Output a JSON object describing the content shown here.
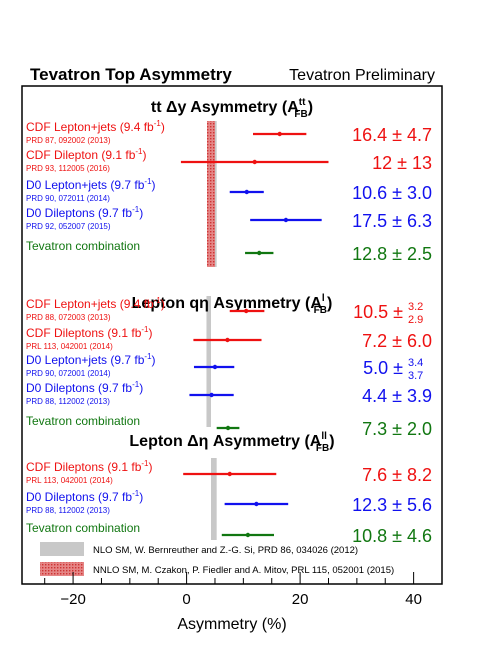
{
  "header": {
    "title": "Tevatron Top Asymmetry",
    "subtitle": "Tevatron Preliminary"
  },
  "chart_data": {
    "type": "scatter",
    "xlabel": "Asymmetry (%)",
    "xlim": [
      -29,
      45
    ],
    "xticks": [
      -20,
      0,
      20,
      40
    ],
    "xtick_labels": [
      "−20",
      "0",
      "20",
      "40"
    ],
    "colors": {
      "cdf": "#ee1111",
      "d0": "#1111ee",
      "combo": "#117711",
      "nlo_band": "#c8c8c8",
      "nnlo_band": "#e58585"
    },
    "sections": [
      {
        "title_main": "tt  Δy Asymmetry (A",
        "title_sup": "tt",
        "title_sub": "FB",
        "title_end": ")",
        "sm_bands": [
          {
            "kind": "nlo",
            "lo": 3.7,
            "hi": 5.3
          },
          {
            "kind": "nnlo",
            "lo": 3.6,
            "hi": 5.0
          }
        ],
        "measurements": [
          {
            "label": "CDF Lepton+jets (9.4 fb",
            "label_sup": "-1",
            "label_end": ")",
            "ref": "PRD 87, 092002 (2013)",
            "color": "cdf",
            "center": 16.4,
            "err_lo": 4.7,
            "err_hi": 4.7,
            "value_text": "16.4 ± 4.7"
          },
          {
            "label": "CDF Dilepton (9.1 fb",
            "label_sup": "-1",
            "label_end": ")",
            "ref": "PRD 93, 112005 (2016)",
            "color": "cdf",
            "center": 12.0,
            "err_lo": 13.0,
            "err_hi": 13.0,
            "value_text": "12 ±  13"
          },
          {
            "label": "D0 Lepton+jets (9.7 fb",
            "label_sup": "-1",
            "label_end": ")",
            "ref": "PRD 90, 072011 (2014)",
            "color": "d0",
            "center": 10.6,
            "err_lo": 3.0,
            "err_hi": 3.0,
            "value_text": "10.6 ± 3.0"
          },
          {
            "label": "D0 Dileptons (9.7 fb",
            "label_sup": "-1",
            "label_end": ")",
            "ref": "PRD 92, 052007 (2015)",
            "color": "d0",
            "center": 17.5,
            "err_lo": 6.3,
            "err_hi": 6.3,
            "value_text": "17.5 ± 6.3"
          },
          {
            "label": "Tevatron combination",
            "label_sup": "",
            "label_end": "",
            "ref": "",
            "color": "combo",
            "center": 12.8,
            "err_lo": 2.5,
            "err_hi": 2.5,
            "value_text": "12.8 ± 2.5"
          }
        ]
      },
      {
        "title_main": "Lepton qη Asymmetry (A",
        "title_sup": "l",
        "title_sub": "FB",
        "title_end": ")",
        "sm_bands": [
          {
            "kind": "nlo",
            "lo": 3.5,
            "hi": 4.3
          }
        ],
        "measurements": [
          {
            "label": "CDF Lepton+jets (9.4 fb",
            "label_sup": "-1",
            "label_end": ")",
            "ref": "PRD 88, 072003 (2013)",
            "color": "cdf",
            "center": 10.5,
            "err_lo": 2.9,
            "err_hi": 3.2,
            "value_main": "10.5 ±",
            "value_up": "3.2",
            "value_down": "2.9"
          },
          {
            "label": "CDF Dileptons (9.1 fb",
            "label_sup": "-1",
            "label_end": ")",
            "ref": "PRL 113, 042001 (2014)",
            "color": "cdf",
            "center": 7.2,
            "err_lo": 6.0,
            "err_hi": 6.0,
            "value_text": "7.2 ± 6.0"
          },
          {
            "label": "D0 Lepton+jets (9.7 fb",
            "label_sup": "-1",
            "label_end": ")",
            "ref": "PRD 90, 072001 (2014)",
            "color": "d0",
            "center": 5.0,
            "err_lo": 3.7,
            "err_hi": 3.4,
            "value_main": "5.0 ±",
            "value_up": "3.4",
            "value_down": "3.7"
          },
          {
            "label": "D0 Dileptons (9.7 fb",
            "label_sup": "-1",
            "label_end": ")",
            "ref": "PRD 88, 112002 (2013)",
            "color": "d0",
            "center": 4.4,
            "err_lo": 3.9,
            "err_hi": 3.9,
            "value_text": "4.4 ± 3.9"
          },
          {
            "label": "Tevatron combination",
            "label_sup": "",
            "label_end": "",
            "ref": "",
            "color": "combo",
            "center": 7.3,
            "err_lo": 2.0,
            "err_hi": 2.0,
            "value_text": "7.3 ± 2.0"
          }
        ]
      },
      {
        "title_main": "Lepton Δη Asymmetry (A",
        "title_sup": "ll",
        "title_sub": "FB",
        "title_end": ")",
        "sm_bands": [
          {
            "kind": "nlo",
            "lo": 4.3,
            "hi": 5.3
          }
        ],
        "measurements": [
          {
            "label": "CDF Dileptons (9.1 fb",
            "label_sup": "-1",
            "label_end": ")",
            "ref": "PRL 113, 042001 (2014)",
            "color": "cdf",
            "center": 7.6,
            "err_lo": 8.2,
            "err_hi": 8.2,
            "value_text": "7.6 ± 8.2"
          },
          {
            "label": "D0 Dileptons (9.7 fb",
            "label_sup": "-1",
            "label_end": ")",
            "ref": "PRD 88, 112002 (2013)",
            "color": "d0",
            "center": 12.3,
            "err_lo": 5.6,
            "err_hi": 5.6,
            "value_text": "12.3 ± 5.6"
          },
          {
            "label": "Tevatron combination",
            "label_sup": "",
            "label_end": "",
            "ref": "",
            "color": "combo",
            "center": 10.8,
            "err_lo": 4.6,
            "err_hi": 4.6,
            "value_text": "10.8 ± 4.6"
          }
        ]
      }
    ],
    "legend": [
      {
        "kind": "nlo",
        "text": "NLO SM, W. Bernreuther and Z.-G. Si, PRD 86, 034026 (2012)"
      },
      {
        "kind": "nnlo",
        "text": "NNLO SM, M. Czakon, P. Fiedler and A. Mitov, PRL 115, 052001 (2015)"
      }
    ]
  }
}
